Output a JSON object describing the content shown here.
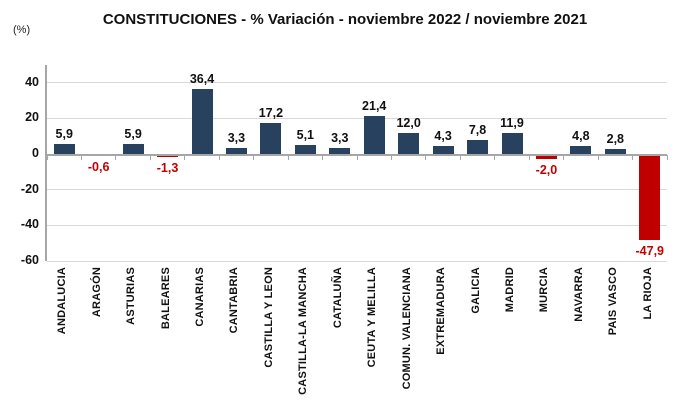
{
  "chart_data": {
    "type": "bar",
    "title": "CONSTITUCIONES - % Variación - noviembre 2022 / noviembre 2021",
    "unit": "(%)",
    "categories": [
      "ANDALUCIA",
      "ARAGÓN",
      "ASTURIAS",
      "BALEARES",
      "CANARIAS",
      "CANTABRIA",
      "CASTILLA Y LEON",
      "CASTILLA-LA MANCHA",
      "CATALUÑA",
      "CEUTA Y MELILLA",
      "COMUN. VALENCIANA",
      "EXTREMADURA",
      "GALICIA",
      "MADRID",
      "MURCIA",
      "NAVARRA",
      "PAIS VASCO",
      "LA RIOJA"
    ],
    "values": [
      5.9,
      -0.6,
      5.9,
      -1.3,
      36.4,
      3.3,
      17.2,
      5.1,
      3.3,
      21.4,
      12.0,
      4.3,
      7.8,
      11.9,
      -2.0,
      4.8,
      2.8,
      -47.9
    ],
    "value_labels": [
      "5,9",
      "-0,6",
      "5,9",
      "-1,3",
      "36,4",
      "3,3",
      "17,2",
      "5,1",
      "3,3",
      "21,4",
      "12,0",
      "4,3",
      "7,8",
      "11,9",
      "-2,0",
      "4,8",
      "2,8",
      "-47,9"
    ],
    "yticks": [
      40,
      20,
      0,
      -20,
      -40,
      -60
    ],
    "ylim": [
      -60,
      50
    ],
    "grid": true,
    "legend": false,
    "colors": {
      "positive_bar": "#27415f",
      "negative_bar": "#c00000",
      "positive_label": "#111111",
      "negative_label": "#c00000",
      "gridline": "#d9d9d9",
      "axis": "#a6a6a6"
    }
  }
}
